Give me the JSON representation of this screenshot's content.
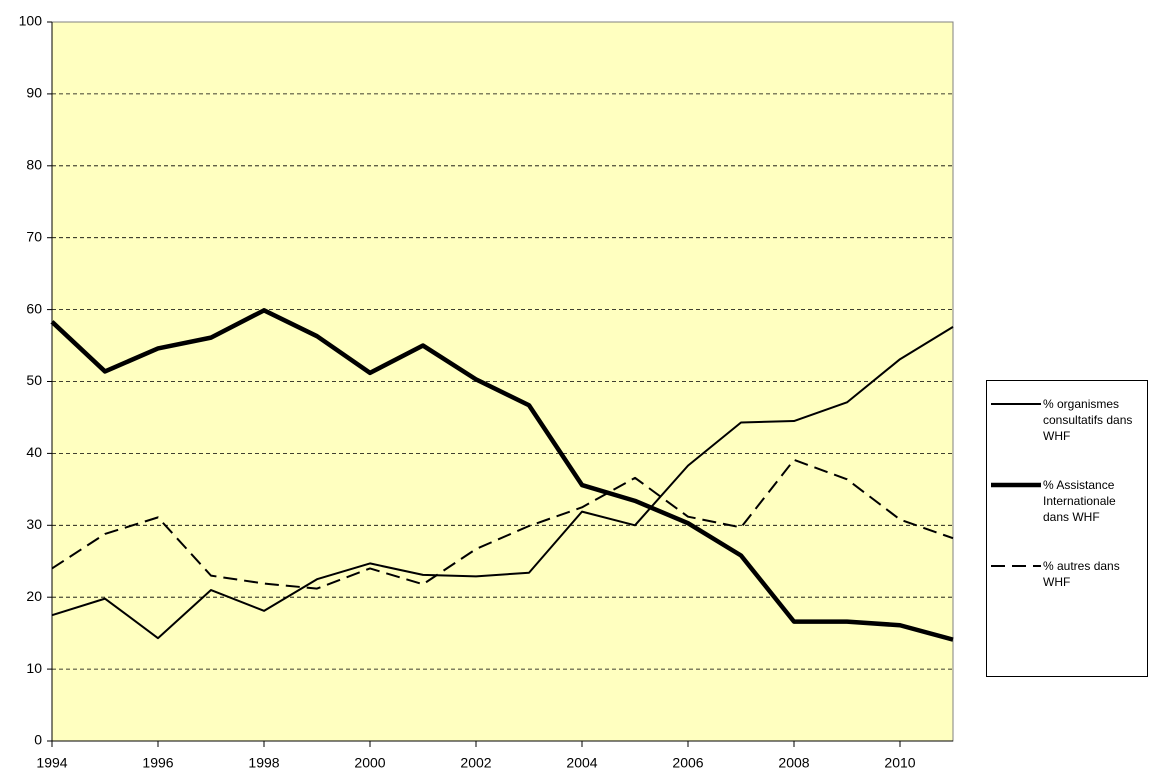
{
  "chart_data": {
    "type": "line",
    "x": [
      1994,
      1995,
      1996,
      1997,
      1998,
      1999,
      2000,
      2001,
      2002,
      2003,
      2004,
      2005,
      2006,
      2007,
      2008,
      2009,
      2010,
      2011
    ],
    "series": [
      {
        "name": "% organismes consultatifs dans WHF",
        "color": "#000000",
        "style": "thin",
        "values": [
          17.5,
          19.8,
          14.3,
          21,
          18.1,
          22.5,
          24.7,
          23.1,
          22.9,
          23.4,
          31.9,
          30,
          38.3,
          44.3,
          44.5,
          47.1,
          53.1,
          57.6
        ]
      },
      {
        "name": "% Assistance Internationale dans WHF",
        "color": "#000000",
        "style": "thick",
        "values": [
          58.3,
          51.4,
          54.6,
          56.1,
          59.9,
          56.3,
          51.2,
          55,
          50.3,
          46.7,
          35.6,
          33.4,
          30.3,
          25.8,
          16.6,
          16.6,
          16.1,
          14.1
        ]
      },
      {
        "name": "% autres dans WHF",
        "color": "#000000",
        "style": "dashed",
        "values": [
          24,
          28.8,
          31.1,
          23,
          21.9,
          21.2,
          24,
          21.8,
          26.7,
          29.9,
          32.5,
          36.6,
          31.2,
          29.7,
          39.1,
          36.4,
          30.8,
          28.2
        ]
      }
    ],
    "xlim": [
      1994,
      2011
    ],
    "xticks": [
      1994,
      1996,
      1998,
      2000,
      2002,
      2004,
      2006,
      2008,
      2010
    ],
    "ylim": [
      0,
      100
    ],
    "yticks": [
      0,
      10,
      20,
      30,
      40,
      50,
      60,
      70,
      80,
      90,
      100
    ],
    "grid": true,
    "background": "#ffffc0",
    "legend": "right"
  }
}
